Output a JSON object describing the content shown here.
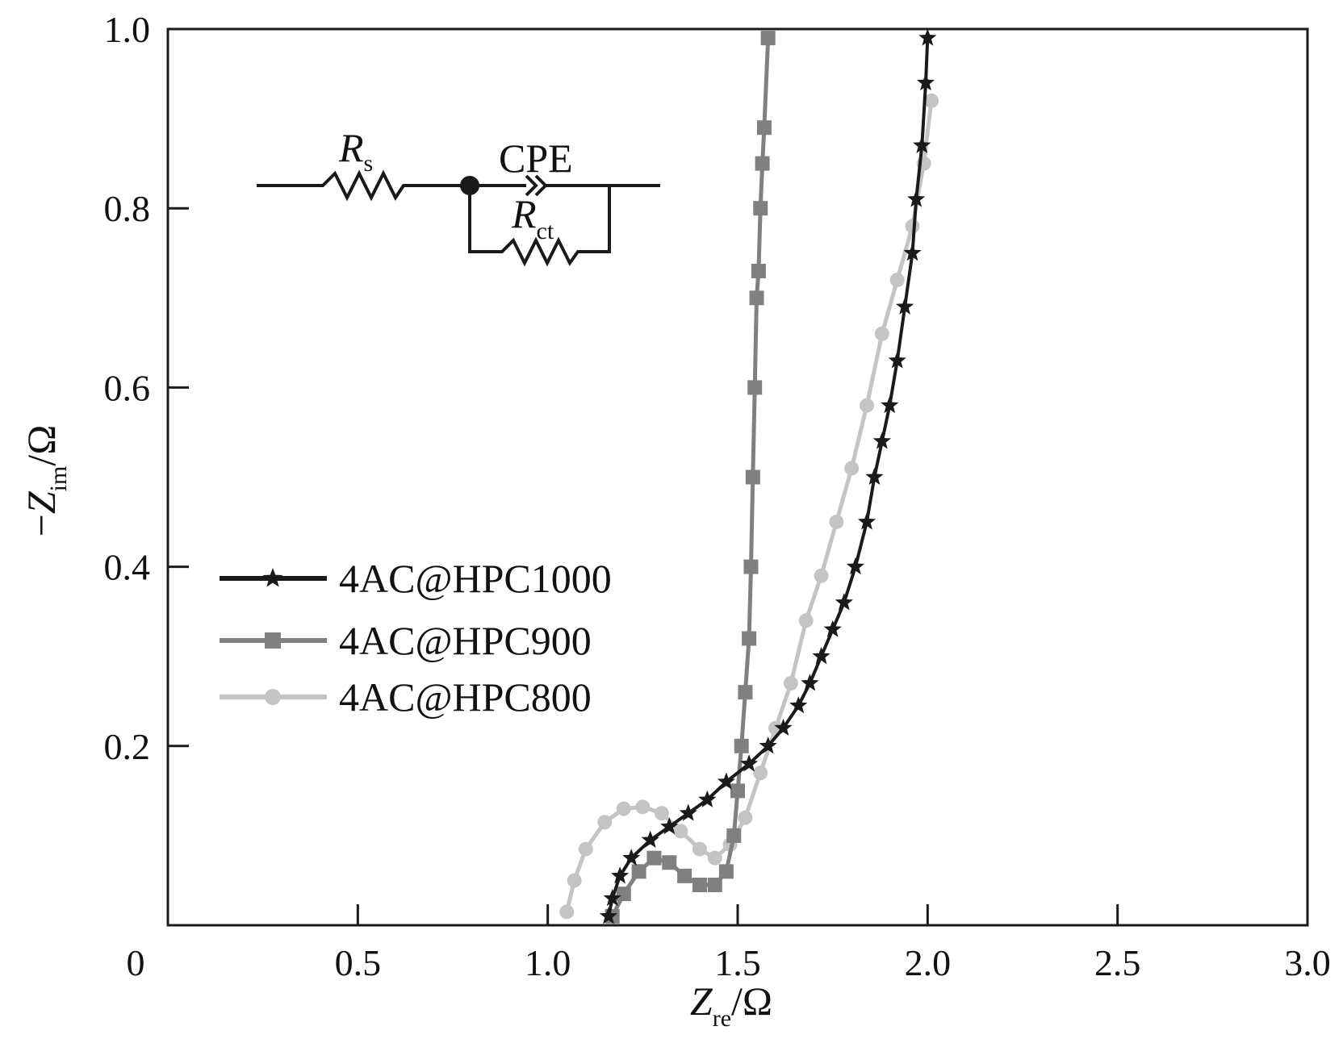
{
  "chart_data": {
    "type": "line",
    "xlabel": {
      "main": "Z",
      "sub": "re",
      "unit": "/Ω"
    },
    "ylabel": {
      "prefix": "−",
      "main": "Z",
      "sub": "im",
      "unit": "/Ω"
    },
    "xlim": [
      0,
      3.0
    ],
    "ylim": [
      0,
      1.0
    ],
    "xticks": [
      0,
      0.5,
      1.0,
      1.5,
      2.0,
      2.5,
      3.0
    ],
    "xtick_labels": [
      "0",
      "0.5",
      "1.0",
      "1.5",
      "2.0",
      "2.5",
      "3.0"
    ],
    "yticks": [
      0.2,
      0.4,
      0.6,
      0.8,
      1.0
    ],
    "ytick_labels": [
      "0.2",
      "0.4",
      "0.6",
      "0.8",
      "1.0"
    ],
    "grid": false,
    "legend_position": "middle-left",
    "inset": {
      "type": "equivalent-circuit",
      "labels": {
        "rs": {
          "main": "R",
          "sub": "s"
        },
        "cpe": "CPE",
        "rct": {
          "main": "R",
          "sub": "ct"
        }
      }
    },
    "series": [
      {
        "name": "4AC@HPC1000",
        "color": "#1a1a1a",
        "marker": "star",
        "x": [
          1.16,
          1.17,
          1.19,
          1.22,
          1.27,
          1.32,
          1.37,
          1.42,
          1.47,
          1.53,
          1.58,
          1.62,
          1.66,
          1.69,
          1.72,
          1.75,
          1.78,
          1.81,
          1.84,
          1.86,
          1.88,
          1.9,
          1.92,
          1.94,
          1.96,
          1.97,
          1.985,
          1.995,
          2.0
        ],
        "y": [
          0.01,
          0.03,
          0.055,
          0.075,
          0.095,
          0.11,
          0.125,
          0.14,
          0.16,
          0.18,
          0.2,
          0.22,
          0.245,
          0.27,
          0.3,
          0.33,
          0.36,
          0.4,
          0.45,
          0.5,
          0.54,
          0.58,
          0.63,
          0.69,
          0.75,
          0.81,
          0.87,
          0.94,
          0.99
        ]
      },
      {
        "name": "4AC@HPC900",
        "color": "#808080",
        "marker": "square",
        "x": [
          1.17,
          1.2,
          1.24,
          1.28,
          1.32,
          1.36,
          1.4,
          1.44,
          1.47,
          1.49,
          1.5,
          1.51,
          1.52,
          1.53,
          1.535,
          1.54,
          1.545,
          1.55,
          1.555,
          1.56,
          1.565,
          1.57,
          1.58
        ],
        "y": [
          0.01,
          0.035,
          0.06,
          0.075,
          0.07,
          0.055,
          0.045,
          0.045,
          0.06,
          0.1,
          0.15,
          0.2,
          0.26,
          0.32,
          0.4,
          0.5,
          0.6,
          0.7,
          0.73,
          0.8,
          0.85,
          0.89,
          0.99
        ]
      },
      {
        "name": "4AC@HPC800",
        "color": "#c4c4c4",
        "marker": "circle",
        "x": [
          1.05,
          1.07,
          1.1,
          1.15,
          1.2,
          1.25,
          1.3,
          1.35,
          1.4,
          1.44,
          1.48,
          1.52,
          1.56,
          1.6,
          1.64,
          1.68,
          1.72,
          1.76,
          1.8,
          1.84,
          1.88,
          1.92,
          1.96,
          1.99,
          2.01
        ],
        "y": [
          0.015,
          0.05,
          0.085,
          0.115,
          0.13,
          0.132,
          0.125,
          0.105,
          0.085,
          0.075,
          0.09,
          0.12,
          0.17,
          0.22,
          0.27,
          0.34,
          0.39,
          0.45,
          0.51,
          0.58,
          0.66,
          0.72,
          0.78,
          0.85,
          0.92
        ]
      }
    ]
  }
}
